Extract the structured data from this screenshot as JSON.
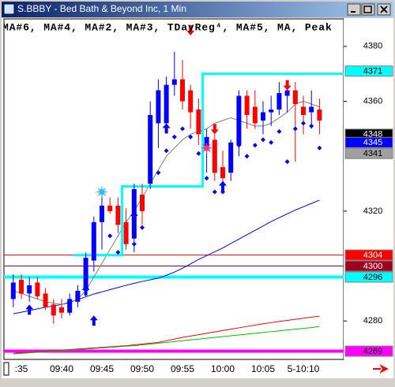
{
  "chart_data": {
    "type": "candlestick",
    "title": "S.BBBY - Bed Bath & Beyond Inc, 1 Min",
    "legend": "MA#6, MA#4, MA#2, MA#3, TDayReg⁴, MA#5, MA, Peak",
    "categories": [
      null,
      ":35",
      null,
      null,
      null,
      null,
      "09:40",
      null,
      null,
      null,
      null,
      "09:45",
      null,
      null,
      null,
      null,
      "09:50",
      null,
      null,
      null,
      null,
      "09:55",
      null,
      null,
      null,
      null,
      "10:00",
      null,
      null,
      null,
      null,
      "10:05",
      null,
      null,
      null,
      null,
      "5-10:10",
      null,
      null
    ],
    "open": [
      4288,
      4295,
      4290,
      4294,
      4290,
      4286,
      4285,
      4283,
      4287,
      4291,
      4302,
      4316,
      4322,
      4322,
      4316,
      4310,
      4326,
      4330,
      4352,
      4352,
      4366,
      4368,
      4364,
      4357,
      4343,
      4346,
      4336,
      4334,
      4344,
      4362,
      4358,
      4353,
      4356,
      4357,
      4362,
      4364,
      4358,
      4356,
      4357
    ],
    "high": [
      4297,
      4297,
      4296,
      4296,
      4292,
      4288,
      4288,
      4290,
      4293,
      4305,
      4318,
      4326,
      4325,
      4325,
      4321,
      4330,
      4330,
      4360,
      4368,
      4369,
      4378,
      4375,
      4366,
      4361,
      4350,
      4348,
      4342,
      4346,
      4364,
      4364,
      4364,
      4360,
      4362,
      4367,
      4366,
      4367,
      4362,
      4364,
      4361
    ],
    "low": [
      4285,
      4288,
      4287,
      4288,
      4284,
      4279,
      4281,
      4282,
      4285,
      4289,
      4298,
      4306,
      4319,
      4312,
      4306,
      4305,
      4315,
      4328,
      4343,
      4350,
      4362,
      4357,
      4350,
      4344,
      4334,
      4331,
      4328,
      4331,
      4340,
      4350,
      4350,
      4348,
      4351,
      4355,
      4356,
      4338,
      4348,
      4350,
      4348
    ],
    "close": [
      4294,
      4290,
      4293,
      4289,
      4285,
      4282,
      4283,
      4288,
      4291,
      4303,
      4316,
      4322,
      4320,
      4315,
      4308,
      4328,
      4320,
      4355,
      4364,
      4366,
      4368,
      4360,
      4356,
      4348,
      4347,
      4334,
      4332,
      4345,
      4362,
      4355,
      4352,
      4356,
      4357,
      4363,
      4364,
      4359,
      4355,
      4358,
      4353
    ],
    "up_color": "#0000ff",
    "down_color": "#ff0000",
    "lines": [
      {
        "color": "#0000ff",
        "values": [
          4282.6,
          4283.2,
          4283.8,
          4284.4,
          4285,
          4285.5,
          4286,
          4286.8,
          4287.8,
          4288.8,
          4289.8,
          4290.6,
          4291.4,
          4292.2,
          4293,
          4293.7,
          4294.4,
          4295,
          4295.6,
          4296.6,
          4297.8,
          4299.2,
          4300.8,
          4302.4,
          4303.8,
          4305.2,
          4306.6,
          4308.2,
          4309.8,
          4311.4,
          4313,
          4314.6,
          4316.2,
          4317.6,
          4319,
          4320.4,
          4321.6,
          4322.8,
          4324
        ]
      },
      {
        "color": "#808080",
        "values": [
          4291,
          4290,
          4289,
          4288,
          4287,
          4286.5,
          4286,
          4286.5,
          4288,
          4291,
          4296,
          4301,
          4306,
          4311,
          4316,
          4320,
          4325,
          4330,
          4335,
          4340,
          4343,
          4346,
          4348,
          4349,
          4350,
          4352,
          4353,
          4354,
          4353,
          4352,
          4351,
          4351,
          4352,
          4354,
          4356,
          4359,
          4360,
          4359,
          4358
        ]
      },
      {
        "color": "#ff0000",
        "values": [
          4268.2,
          4268.4,
          4268.6,
          4268.8,
          4269,
          4269.2,
          4269.4,
          4269.6,
          4269.8,
          4270,
          4270.2,
          4270.4,
          4270.6,
          4270.8,
          4271,
          4271.3,
          4271.6,
          4271.9,
          4272.2,
          4272.8,
          4273.4,
          4274,
          4274.5,
          4275,
          4275.5,
          4276,
          4276.5,
          4277,
          4277.5,
          4278,
          4278.5,
          4279,
          4279.4,
          4279.8,
          4280.2,
          4280.6,
          4281,
          4281.4,
          4281.7
        ]
      },
      {
        "color": "#00c000",
        "values": [
          4268,
          4268.2,
          4268.4,
          4268.6,
          4268.8,
          4269,
          4269.2,
          4269.4,
          4269.6,
          4269.8,
          4270,
          4270.2,
          4270.4,
          4270.6,
          4270.8,
          4271,
          4271.3,
          4271.6,
          4271.9,
          4272.2,
          4272.5,
          4272.8,
          4273.1,
          4273.4,
          4273.7,
          4274,
          4274.3,
          4274.6,
          4274.9,
          4275.2,
          4275.5,
          4275.8,
          4276.1,
          4276.4,
          4276.7,
          4277,
          4277.3,
          4277.6,
          4278
        ]
      },
      {
        "color": "#00ffff",
        "step": true,
        "values": [
          null,
          null,
          null,
          null,
          null,
          null,
          null,
          null,
          4304,
          4304,
          4304,
          4304,
          4304,
          4304,
          4329,
          4329,
          4329,
          4329,
          4329,
          4329,
          4329,
          4329,
          4329,
          4329,
          4370,
          4370,
          4370,
          4370,
          4370,
          4370,
          4370,
          4370,
          4370,
          4370,
          4370,
          4370,
          4370,
          4370,
          4370
        ]
      }
    ],
    "markers": [
      {
        "shape": "up-arrow",
        "color": "#0000ff",
        "values": [
          null,
          null,
          4286,
          null,
          null,
          null,
          null,
          null,
          null,
          4293,
          4282,
          null,
          null,
          null,
          null,
          4320,
          null,
          null,
          null,
          4352,
          null,
          null,
          null,
          null,
          null,
          null,
          4331,
          null,
          null,
          null,
          null,
          null,
          null,
          null,
          null,
          null,
          null,
          null,
          null
        ]
      },
      {
        "shape": "down-arrow",
        "color": "#ff0000",
        "values": [
          null,
          null,
          null,
          null,
          null,
          null,
          null,
          null,
          null,
          null,
          null,
          null,
          null,
          null,
          null,
          null,
          null,
          null,
          null,
          null,
          null,
          null,
          4384,
          null,
          null,
          4348,
          null,
          null,
          null,
          null,
          null,
          null,
          null,
          null,
          4364,
          null,
          null,
          null,
          null
        ]
      },
      {
        "shape": "diamond",
        "color": "#0000ff",
        "values": [
          null,
          null,
          null,
          null,
          null,
          null,
          null,
          null,
          null,
          null,
          null,
          4318,
          4311,
          4305,
          null,
          4308,
          4314,
          null,
          4334,
          4342,
          4347,
          4350,
          4347,
          4341,
          4332,
          4327,
          4327,
          4338,
          4344,
          4340,
          4344,
          4346,
          4345,
          4349,
          4338,
          4350,
          4352,
          4351,
          4343
        ]
      },
      {
        "shape": "burst",
        "color": "#33bbff",
        "values": [
          null,
          null,
          null,
          null,
          null,
          null,
          null,
          null,
          null,
          null,
          null,
          4327,
          null,
          null,
          null,
          null,
          null,
          null,
          null,
          null,
          null,
          null,
          null,
          null,
          null,
          null,
          null,
          null,
          null,
          null,
          null,
          null,
          null,
          null,
          null,
          null,
          null,
          null,
          null
        ]
      },
      {
        "shape": "burst",
        "color": "#ff3377",
        "values": [
          null,
          null,
          null,
          null,
          null,
          null,
          null,
          null,
          null,
          null,
          null,
          null,
          null,
          null,
          null,
          null,
          null,
          null,
          null,
          null,
          null,
          null,
          null,
          null,
          4343,
          null,
          null,
          null,
          null,
          null,
          null,
          null,
          null,
          null,
          null,
          null,
          null,
          null,
          null
        ]
      }
    ],
    "price_labels": [
      {
        "value": 4371,
        "color": "#00ffff",
        "text_color": "#000000",
        "level": "none"
      },
      {
        "value": 4348,
        "color": "#000000",
        "text_color": "#ffffff",
        "level": "none"
      },
      {
        "value": 4345,
        "color": "#0000ff",
        "text_color": "#ffffff",
        "level": "none"
      },
      {
        "value": 4341,
        "color": "#a0a0a0",
        "text_color": "#000000",
        "level": "none"
      },
      {
        "value": 4304,
        "color": "#ff0000",
        "text_color": "#ffffff",
        "level": "thin"
      },
      {
        "value": 4300,
        "color": "#a00020",
        "text_color": "#ffffff",
        "level": "thin"
      },
      {
        "value": 4296,
        "color": "#00ffff",
        "text_color": "#000000",
        "level": "thick"
      },
      {
        "value": 4269,
        "color": "#ff00ff",
        "text_color": "#000000",
        "level": "thick"
      }
    ],
    "ylim": [
      4266,
      4390
    ],
    "yticks": [
      4280,
      4320,
      4360,
      4380
    ]
  }
}
